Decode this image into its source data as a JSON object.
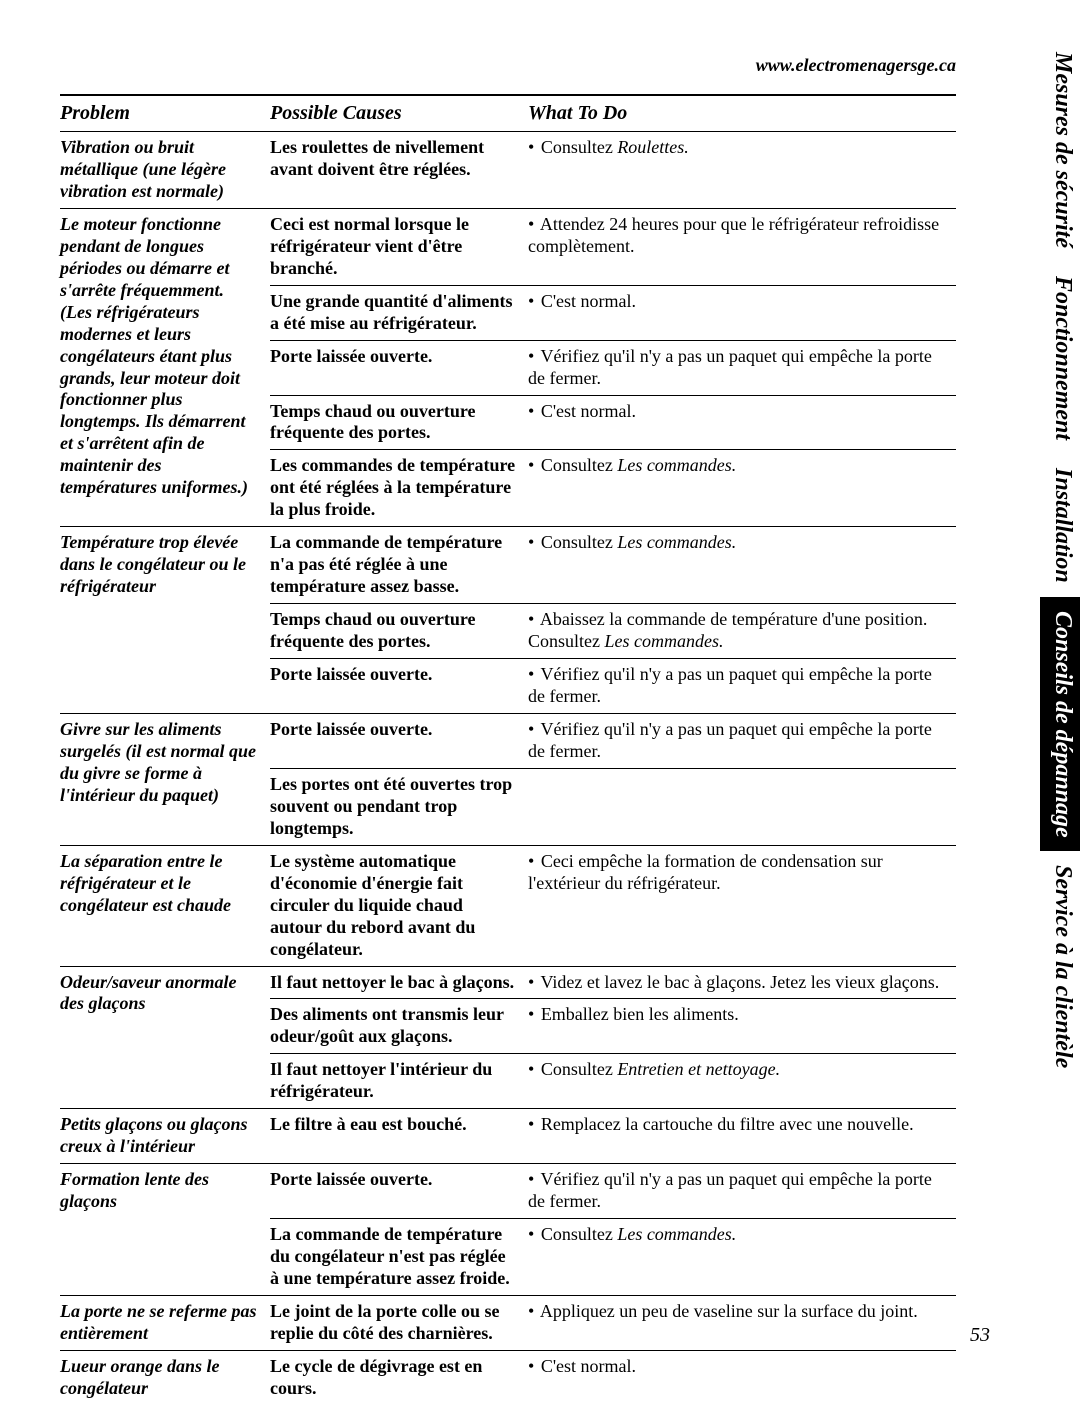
{
  "url": "www.electromenagersge.ca",
  "page_number": "53",
  "colors": {
    "fg": "#000000",
    "bg": "#ffffff"
  },
  "headers": {
    "problem": "Problem",
    "cause": "Possible Causes",
    "action": "What To Do"
  },
  "tabs": [
    {
      "label": "Mesures de sécurité",
      "style": "light"
    },
    {
      "label": "Fonctionnement",
      "style": "light"
    },
    {
      "label": "Installation",
      "style": "light"
    },
    {
      "label": "Conseils de dépannage",
      "style": "dark"
    },
    {
      "label": "Service à la clientèle",
      "style": "light"
    }
  ],
  "rows": [
    {
      "problem": "Vibration ou bruit métallique (une légère vibration est normale)",
      "items": [
        {
          "cause": "Les roulettes de nivellement avant doivent être réglées.",
          "action_pre": "Consultez ",
          "action_em": "Roulettes.",
          "action_post": ""
        }
      ]
    },
    {
      "problem": "Le moteur fonctionne pendant de longues périodes ou démarre et s'arrête fréquemment. (Les réfrigérateurs modernes et leurs congélateurs étant plus grands, leur moteur doit fonctionner plus longtemps. Ils démarrent et s'arrêtent afin de maintenir des températures uniformes.)",
      "items": [
        {
          "cause": "Ceci est normal lorsque le réfrigérateur vient d'être branché.",
          "action_pre": "Attendez 24 heures pour que le réfrigérateur refroidisse complètement.",
          "action_em": "",
          "action_post": ""
        },
        {
          "cause": "Une grande quantité d'aliments a été mise au réfrigérateur.",
          "action_pre": "C'est normal.",
          "action_em": "",
          "action_post": ""
        },
        {
          "cause": "Porte laissée ouverte.",
          "action_pre": "Vérifiez qu'il n'y a pas un paquet qui empêche la porte de fermer.",
          "action_em": "",
          "action_post": ""
        },
        {
          "cause": "Temps chaud ou ouverture fréquente des portes.",
          "action_pre": "C'est normal.",
          "action_em": "",
          "action_post": ""
        },
        {
          "cause": "Les commandes de température ont été réglées à la température la plus froide.",
          "action_pre": "Consultez ",
          "action_em": "Les commandes.",
          "action_post": ""
        }
      ]
    },
    {
      "problem": "Température trop élevée dans le congélateur ou le réfrigérateur",
      "items": [
        {
          "cause": "La commande de température n'a pas été réglée à une température assez basse.",
          "action_pre": "Consultez ",
          "action_em": "Les commandes.",
          "action_post": ""
        },
        {
          "cause": "Temps chaud ou ouverture fréquente des portes.",
          "action_pre": "Abaissez la commande de température d'une position. Consultez ",
          "action_em": "Les commandes.",
          "action_post": ""
        },
        {
          "cause": "Porte laissée ouverte.",
          "action_pre": "Vérifiez qu'il n'y a pas un paquet qui empêche la porte de fermer.",
          "action_em": "",
          "action_post": ""
        }
      ]
    },
    {
      "problem": "Givre sur les aliments surgelés (il est normal que du givre se forme à l'intérieur du paquet)",
      "items": [
        {
          "cause": "Porte laissée ouverte.",
          "action_pre": "Vérifiez qu'il n'y a pas un paquet qui empêche la porte de fermer.",
          "action_em": "",
          "action_post": ""
        },
        {
          "cause": "Les portes ont été ouvertes trop souvent ou pendant trop longtemps.",
          "action_pre": "",
          "action_em": "",
          "action_post": ""
        }
      ]
    },
    {
      "problem": "La séparation entre le réfrigérateur et le congélateur est chaude",
      "items": [
        {
          "cause": "Le système automatique d'économie d'énergie fait circuler du liquide chaud autour du rebord avant du congélateur.",
          "action_pre": "Ceci empêche la formation de condensation sur l'extérieur du réfrigérateur.",
          "action_em": "",
          "action_post": ""
        }
      ]
    },
    {
      "problem": "Odeur/saveur anormale des glaçons",
      "items": [
        {
          "cause": "Il faut nettoyer le bac à glaçons.",
          "action_pre": "Videz et lavez le bac à glaçons. Jetez les vieux glaçons.",
          "action_em": "",
          "action_post": ""
        },
        {
          "cause": "Des aliments ont transmis leur odeur/goût aux glaçons.",
          "action_pre": "Emballez bien les aliments.",
          "action_em": "",
          "action_post": ""
        },
        {
          "cause": "Il faut nettoyer l'intérieur du réfrigérateur.",
          "action_pre": "Consultez ",
          "action_em": "Entretien et nettoyage.",
          "action_post": ""
        }
      ]
    },
    {
      "problem": "Petits glaçons ou glaçons creux à l'intérieur",
      "items": [
        {
          "cause": "Le filtre à eau est bouché.",
          "action_pre": "Remplacez la cartouche du filtre avec une nouvelle.",
          "action_em": "",
          "action_post": ""
        }
      ]
    },
    {
      "problem": "Formation lente des glaçons",
      "items": [
        {
          "cause": "Porte laissée ouverte.",
          "action_pre": "Vérifiez qu'il n'y a pas un paquet qui empêche la porte de fermer.",
          "action_em": "",
          "action_post": ""
        },
        {
          "cause": "La commande de température du congélateur n'est pas réglée à une température assez froide.",
          "action_pre": "Consultez ",
          "action_em": "Les commandes.",
          "action_post": ""
        }
      ]
    },
    {
      "problem": "La porte ne se referme pas entièrement",
      "items": [
        {
          "cause": "Le joint de la porte colle ou se replie du côté des charnières.",
          "action_pre": "Appliquez un peu de vaseline sur la surface du joint.",
          "action_em": "",
          "action_post": ""
        }
      ]
    },
    {
      "problem": "Lueur orange dans le congélateur",
      "items": [
        {
          "cause": "Le cycle de dégivrage est en cours.",
          "action_pre": "C'est normal.",
          "action_em": "",
          "action_post": ""
        }
      ]
    }
  ]
}
